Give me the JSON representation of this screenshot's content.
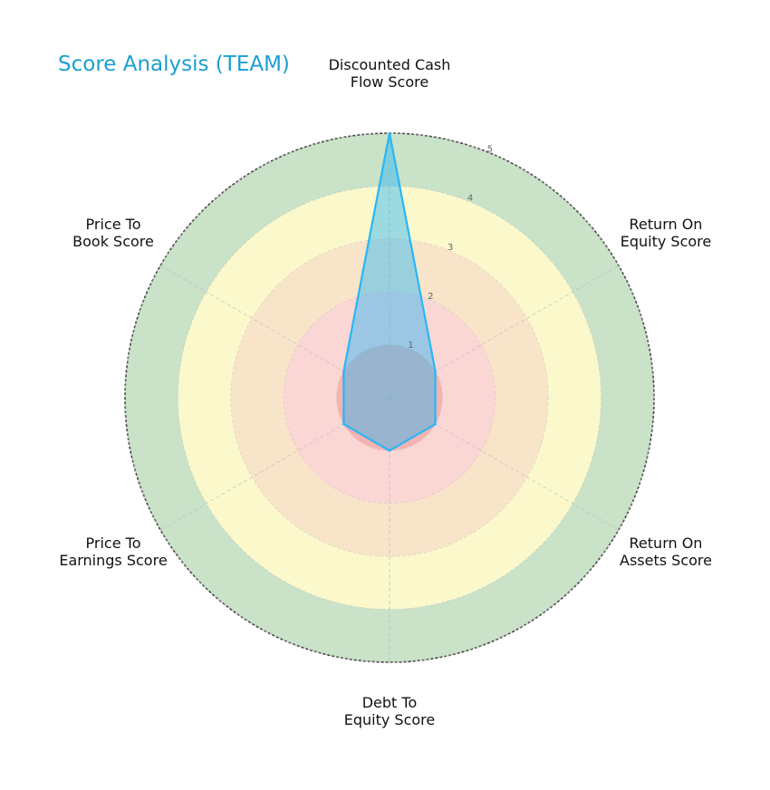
{
  "chart_data": {
    "type": "radar",
    "title": "Score Analysis (TEAM)",
    "categories": [
      [
        "Discounted Cash",
        "Flow Score"
      ],
      [
        "Return On",
        "Equity Score"
      ],
      [
        "Return On",
        "Assets Score"
      ],
      [
        "Debt To",
        "Equity Score"
      ],
      [
        "Price To",
        "Earnings Score"
      ],
      [
        "Price To",
        "Book Score"
      ]
    ],
    "series": [
      {
        "values": [
          5,
          1,
          1,
          1,
          1,
          1
        ],
        "color": "#29b6f6"
      }
    ],
    "rlim": [
      0,
      5
    ],
    "rticks": [
      "1",
      "2",
      "3",
      "4",
      "5"
    ],
    "bands": [
      {
        "from": 0,
        "to": 1,
        "color": "#f4b3b0"
      },
      {
        "from": 1,
        "to": 2,
        "color": "#fad6d5"
      },
      {
        "from": 2,
        "to": 3,
        "color": "#f8e4c8"
      },
      {
        "from": 3,
        "to": 4,
        "color": "#fbf8cc"
      },
      {
        "from": 4,
        "to": 5,
        "color": "#c9e2c8"
      }
    ],
    "grid": true
  }
}
